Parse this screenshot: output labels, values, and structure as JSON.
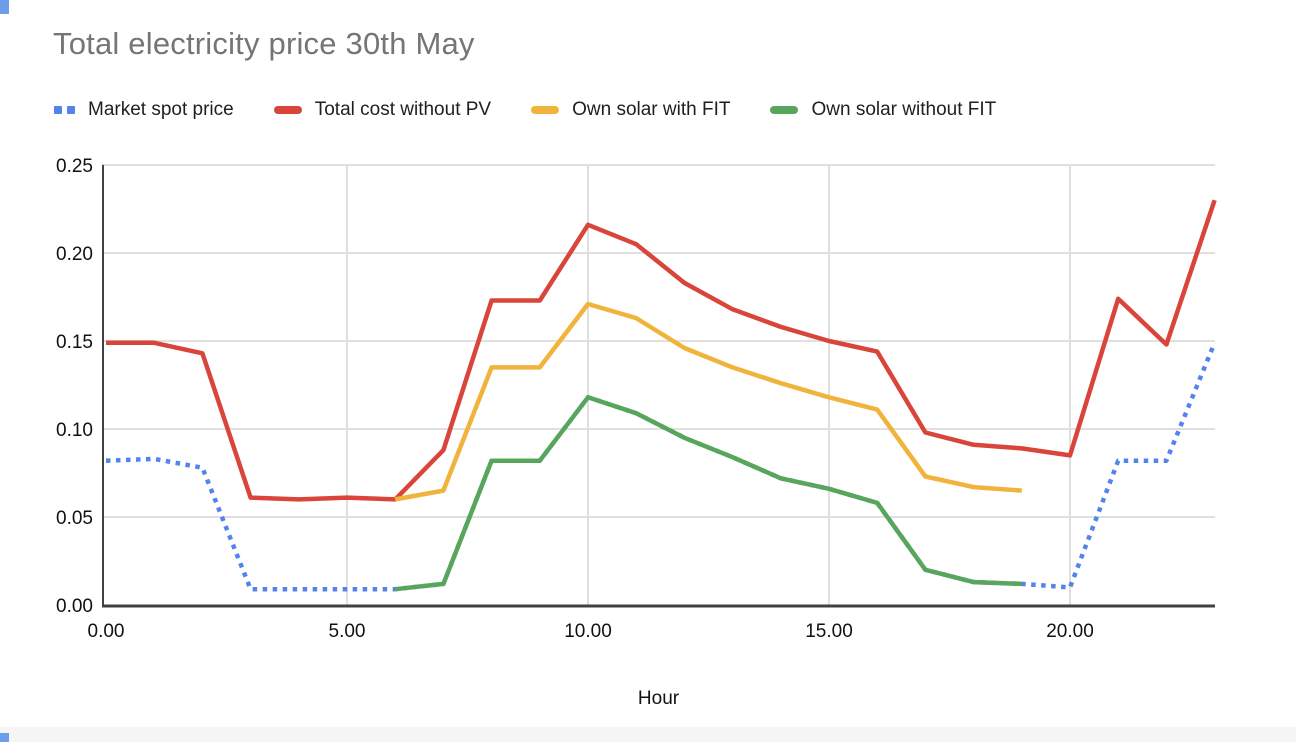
{
  "chart_data": {
    "type": "line",
    "title": "Total electricity price 30th May",
    "xlabel": "Hour",
    "ylabel": "",
    "xlim": [
      0,
      23
    ],
    "ylim": [
      0,
      0.25
    ],
    "grid": true,
    "legend_position": "top",
    "x_ticks": [
      {
        "value": 0,
        "label": "0.00"
      },
      {
        "value": 5,
        "label": "5.00"
      },
      {
        "value": 10,
        "label": "10.00"
      },
      {
        "value": 15,
        "label": "15.00"
      },
      {
        "value": 20,
        "label": "20.00"
      }
    ],
    "y_ticks": [
      {
        "value": 0.0,
        "label": "0.00"
      },
      {
        "value": 0.05,
        "label": "0.05"
      },
      {
        "value": 0.1,
        "label": "0.10"
      },
      {
        "value": 0.15,
        "label": "0.15"
      },
      {
        "value": 0.2,
        "label": "0.20"
      },
      {
        "value": 0.25,
        "label": "0.25"
      }
    ],
    "x": [
      0,
      1,
      2,
      3,
      4,
      5,
      6,
      7,
      8,
      9,
      10,
      11,
      12,
      13,
      14,
      15,
      16,
      17,
      18,
      19,
      20,
      21,
      22,
      23
    ],
    "series": [
      {
        "name": "Market spot price",
        "color": "#5383ec",
        "style": "dotted",
        "values": [
          0.082,
          0.083,
          0.078,
          0.009,
          0.009,
          0.009,
          0.009,
          0.012,
          0.082,
          0.082,
          0.118,
          0.109,
          0.095,
          0.084,
          0.072,
          0.066,
          0.058,
          0.02,
          0.013,
          0.012,
          0.01,
          0.082,
          0.082,
          0.149
        ]
      },
      {
        "name": "Total cost without PV",
        "color": "#d9453a",
        "style": "solid",
        "values": [
          0.149,
          0.149,
          0.143,
          0.061,
          0.06,
          0.061,
          0.06,
          0.088,
          0.173,
          0.173,
          0.216,
          0.205,
          0.183,
          0.168,
          0.158,
          0.15,
          0.144,
          0.098,
          0.091,
          0.089,
          0.085,
          0.174,
          0.148,
          0.23
        ]
      },
      {
        "name": "Own solar with FIT",
        "color": "#f0b43c",
        "style": "solid",
        "values": [
          null,
          null,
          null,
          null,
          null,
          null,
          0.06,
          0.065,
          0.135,
          0.135,
          0.171,
          0.163,
          0.146,
          0.135,
          0.126,
          0.118,
          0.111,
          0.073,
          0.067,
          0.065,
          null,
          null,
          null,
          null
        ]
      },
      {
        "name": "Own solar without FIT",
        "color": "#58a55c",
        "style": "solid",
        "values": [
          null,
          null,
          null,
          null,
          null,
          null,
          0.009,
          0.012,
          0.082,
          0.082,
          0.118,
          0.109,
          0.095,
          0.084,
          0.072,
          0.066,
          0.058,
          0.02,
          0.013,
          0.012,
          null,
          null,
          null,
          null
        ]
      }
    ]
  },
  "chrome": {
    "axis_color": "#404040",
    "grid_color": "#e0e0e0",
    "tick_label_color": "#111111",
    "handle_color": "#6d9eeb",
    "bottom_bar_color": "#f5f5f6"
  }
}
